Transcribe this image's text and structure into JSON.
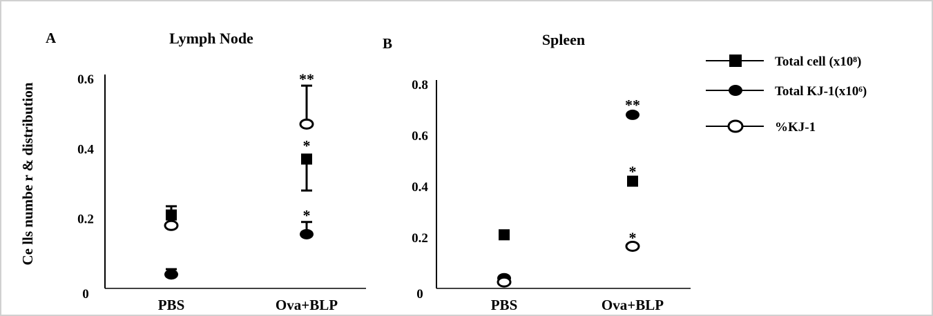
{
  "chart_data": [
    {
      "type": "scatter",
      "panel": "A",
      "title": "Lymph Node",
      "ylabel": "Ce lls numbe r & distribution",
      "categories": [
        "PBS",
        "Ova+BLP"
      ],
      "ylim": [
        0,
        0.6
      ],
      "yticks": [
        "0",
        "0.2",
        "0.4",
        "0.6"
      ],
      "series": [
        {
          "name": "Total cell (x10⁸)",
          "marker": "square",
          "values": [
            0.21,
            0.37
          ],
          "errors": [
            0.025,
            0.09
          ],
          "error_dir": [
            "up",
            "down"
          ]
        },
        {
          "name": "Total KJ-1(x10⁶)",
          "marker": "filled-circle",
          "values": [
            0.04,
            0.155
          ],
          "errors": [
            0.015,
            0.035
          ],
          "error_dir": [
            "up",
            "up"
          ]
        },
        {
          "name": "%KJ-1",
          "marker": "open-circle",
          "values": [
            0.18,
            0.47
          ],
          "errors": [
            0,
            0.11
          ],
          "error_dir": [
            "up",
            "up"
          ]
        }
      ],
      "annotations": [
        {
          "text": "**",
          "category": "Ova+BLP",
          "y": 0.6
        },
        {
          "text": "*",
          "category": "Ova+BLP",
          "y": 0.41
        },
        {
          "text": "*",
          "category": "Ova+BLP",
          "y": 0.21
        }
      ]
    },
    {
      "type": "scatter",
      "panel": "B",
      "title": "Spleen",
      "ylabel": "",
      "categories": [
        "PBS",
        "Ova+BLP"
      ],
      "ylim": [
        0,
        0.8
      ],
      "yticks": [
        "0",
        "0.2",
        "0.4",
        "0.6",
        "0.8"
      ],
      "series": [
        {
          "name": "Total cell (x10⁸)",
          "marker": "square",
          "values": [
            0.21,
            0.42
          ],
          "errors": [
            0,
            0
          ],
          "error_dir": [
            "up",
            "up"
          ]
        },
        {
          "name": "Total KJ-1(x10⁶)",
          "marker": "filled-circle",
          "values": [
            0.04,
            0.68
          ],
          "errors": [
            0,
            0
          ],
          "error_dir": [
            "up",
            "up"
          ]
        },
        {
          "name": "%KJ-1",
          "marker": "open-circle",
          "values": [
            0.025,
            0.165
          ],
          "errors": [
            0,
            0
          ],
          "error_dir": [
            "up",
            "up"
          ]
        }
      ],
      "annotations": [
        {
          "text": "**",
          "category": "Ova+BLP",
          "y": 0.72
        },
        {
          "text": "*",
          "category": "Ova+BLP",
          "y": 0.46
        },
        {
          "text": "*",
          "category": "Ova+BLP",
          "y": 0.2
        }
      ]
    }
  ],
  "legend": [
    {
      "label": "Total cell (x10⁸)",
      "marker": "square"
    },
    {
      "label": "Total KJ-1(x10⁶)",
      "marker": "filled-circle"
    },
    {
      "label": "%KJ-1",
      "marker": "open-circle"
    }
  ]
}
